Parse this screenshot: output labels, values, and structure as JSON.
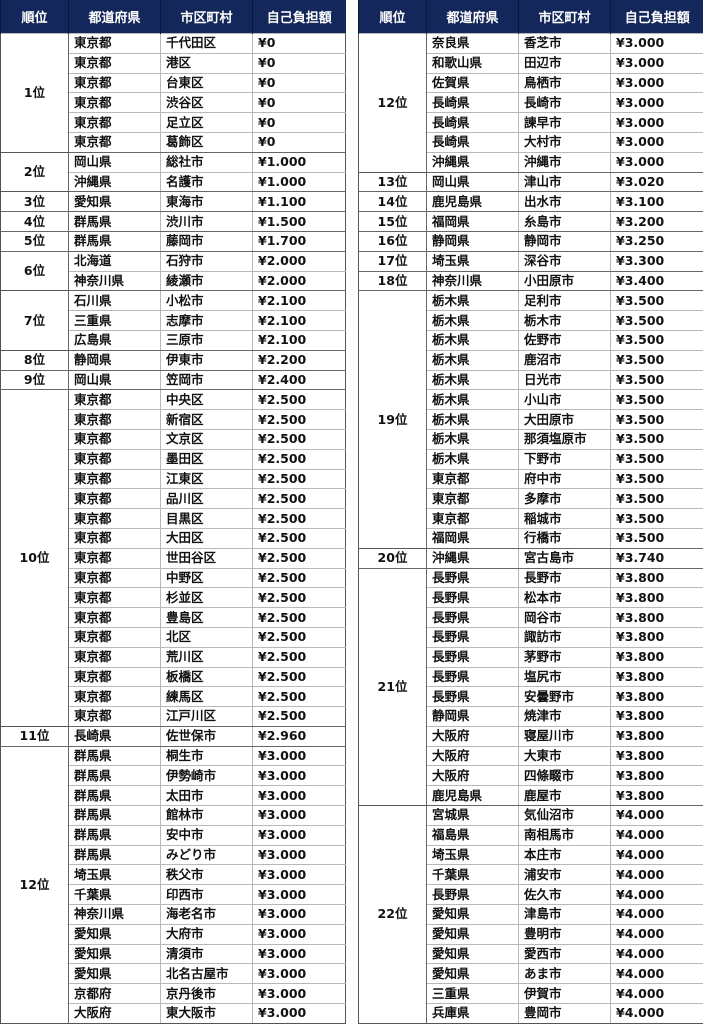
{
  "headers": [
    "順位",
    "都道府県",
    "市区町村",
    "自己負担額"
  ],
  "colors": {
    "header_bg": "#14275a",
    "header_text": "#ffffff"
  },
  "tables": [
    {
      "groups": [
        {
          "rank": "1位",
          "rows": [
            [
              "東京都",
              "千代田区",
              "¥0"
            ],
            [
              "東京都",
              "港区",
              "¥0"
            ],
            [
              "東京都",
              "台東区",
              "¥0"
            ],
            [
              "東京都",
              "渋谷区",
              "¥0"
            ],
            [
              "東京都",
              "足立区",
              "¥0"
            ],
            [
              "東京都",
              "葛飾区",
              "¥0"
            ]
          ]
        },
        {
          "rank": "2位",
          "rows": [
            [
              "岡山県",
              "総社市",
              "¥1.000"
            ],
            [
              "沖縄県",
              "名護市",
              "¥1.000"
            ]
          ]
        },
        {
          "rank": "3位",
          "rows": [
            [
              "愛知県",
              "東海市",
              "¥1.100"
            ]
          ]
        },
        {
          "rank": "4位",
          "rows": [
            [
              "群馬県",
              "渋川市",
              "¥1.500"
            ]
          ]
        },
        {
          "rank": "5位",
          "rows": [
            [
              "群馬県",
              "藤岡市",
              "¥1.700"
            ]
          ]
        },
        {
          "rank": "6位",
          "rows": [
            [
              "北海道",
              "石狩市",
              "¥2.000"
            ],
            [
              "神奈川県",
              "綾瀬市",
              "¥2.000"
            ]
          ]
        },
        {
          "rank": "7位",
          "rows": [
            [
              "石川県",
              "小松市",
              "¥2.100"
            ],
            [
              "三重県",
              "志摩市",
              "¥2.100"
            ],
            [
              "広島県",
              "三原市",
              "¥2.100"
            ]
          ]
        },
        {
          "rank": "8位",
          "rows": [
            [
              "静岡県",
              "伊東市",
              "¥2.200"
            ]
          ]
        },
        {
          "rank": "9位",
          "rows": [
            [
              "岡山県",
              "笠岡市",
              "¥2.400"
            ]
          ]
        },
        {
          "rank": "10位",
          "rows": [
            [
              "東京都",
              "中央区",
              "¥2.500"
            ],
            [
              "東京都",
              "新宿区",
              "¥2.500"
            ],
            [
              "東京都",
              "文京区",
              "¥2.500"
            ],
            [
              "東京都",
              "墨田区",
              "¥2.500"
            ],
            [
              "東京都",
              "江東区",
              "¥2.500"
            ],
            [
              "東京都",
              "品川区",
              "¥2.500"
            ],
            [
              "東京都",
              "目黒区",
              "¥2.500"
            ],
            [
              "東京都",
              "大田区",
              "¥2.500"
            ],
            [
              "東京都",
              "世田谷区",
              "¥2.500"
            ],
            [
              "東京都",
              "中野区",
              "¥2.500"
            ],
            [
              "東京都",
              "杉並区",
              "¥2.500"
            ],
            [
              "東京都",
              "豊島区",
              "¥2.500"
            ],
            [
              "東京都",
              "北区",
              "¥2.500"
            ],
            [
              "東京都",
              "荒川区",
              "¥2.500"
            ],
            [
              "東京都",
              "板橋区",
              "¥2.500"
            ],
            [
              "東京都",
              "練馬区",
              "¥2.500"
            ],
            [
              "東京都",
              "江戸川区",
              "¥2.500"
            ]
          ]
        },
        {
          "rank": "11位",
          "rows": [
            [
              "長崎県",
              "佐世保市",
              "¥2.960"
            ]
          ]
        },
        {
          "rank": "12位",
          "rows": [
            [
              "群馬県",
              "桐生市",
              "¥3.000"
            ],
            [
              "群馬県",
              "伊勢崎市",
              "¥3.000"
            ],
            [
              "群馬県",
              "太田市",
              "¥3.000"
            ],
            [
              "群馬県",
              "館林市",
              "¥3.000"
            ],
            [
              "群馬県",
              "安中市",
              "¥3.000"
            ],
            [
              "群馬県",
              "みどり市",
              "¥3.000"
            ],
            [
              "埼玉県",
              "秩父市",
              "¥3.000"
            ],
            [
              "千葉県",
              "印西市",
              "¥3.000"
            ],
            [
              "神奈川県",
              "海老名市",
              "¥3.000"
            ],
            [
              "愛知県",
              "大府市",
              "¥3.000"
            ],
            [
              "愛知県",
              "清須市",
              "¥3.000"
            ],
            [
              "愛知県",
              "北名古屋市",
              "¥3.000"
            ],
            [
              "京都府",
              "京丹後市",
              "¥3.000"
            ],
            [
              "大阪府",
              "東大阪市",
              "¥3.000"
            ]
          ]
        }
      ]
    },
    {
      "groups": [
        {
          "rank": "12位",
          "rows": [
            [
              "奈良県",
              "香芝市",
              "¥3.000"
            ],
            [
              "和歌山県",
              "田辺市",
              "¥3.000"
            ],
            [
              "佐賀県",
              "鳥栖市",
              "¥3.000"
            ],
            [
              "長崎県",
              "長崎市",
              "¥3.000"
            ],
            [
              "長崎県",
              "諫早市",
              "¥3.000"
            ],
            [
              "長崎県",
              "大村市",
              "¥3.000"
            ],
            [
              "沖縄県",
              "沖縄市",
              "¥3.000"
            ]
          ]
        },
        {
          "rank": "13位",
          "rows": [
            [
              "岡山県",
              "津山市",
              "¥3.020"
            ]
          ]
        },
        {
          "rank": "14位",
          "rows": [
            [
              "鹿児島県",
              "出水市",
              "¥3.100"
            ]
          ]
        },
        {
          "rank": "15位",
          "rows": [
            [
              "福岡県",
              "糸島市",
              "¥3.200"
            ]
          ]
        },
        {
          "rank": "16位",
          "rows": [
            [
              "静岡県",
              "静岡市",
              "¥3.250"
            ]
          ]
        },
        {
          "rank": "17位",
          "rows": [
            [
              "埼玉県",
              "深谷市",
              "¥3.300"
            ]
          ]
        },
        {
          "rank": "18位",
          "rows": [
            [
              "神奈川県",
              "小田原市",
              "¥3.400"
            ]
          ]
        },
        {
          "rank": "19位",
          "rows": [
            [
              "栃木県",
              "足利市",
              "¥3.500"
            ],
            [
              "栃木県",
              "栃木市",
              "¥3.500"
            ],
            [
              "栃木県",
              "佐野市",
              "¥3.500"
            ],
            [
              "栃木県",
              "鹿沼市",
              "¥3.500"
            ],
            [
              "栃木県",
              "日光市",
              "¥3.500"
            ],
            [
              "栃木県",
              "小山市",
              "¥3.500"
            ],
            [
              "栃木県",
              "大田原市",
              "¥3.500"
            ],
            [
              "栃木県",
              "那須塩原市",
              "¥3.500"
            ],
            [
              "栃木県",
              "下野市",
              "¥3.500"
            ],
            [
              "東京都",
              "府中市",
              "¥3.500"
            ],
            [
              "東京都",
              "多摩市",
              "¥3.500"
            ],
            [
              "東京都",
              "稲城市",
              "¥3.500"
            ],
            [
              "福岡県",
              "行橋市",
              "¥3.500"
            ]
          ]
        },
        {
          "rank": "20位",
          "rows": [
            [
              "沖縄県",
              "宮古島市",
              "¥3.740"
            ]
          ]
        },
        {
          "rank": "21位",
          "rows": [
            [
              "長野県",
              "長野市",
              "¥3.800"
            ],
            [
              "長野県",
              "松本市",
              "¥3.800"
            ],
            [
              "長野県",
              "岡谷市",
              "¥3.800"
            ],
            [
              "長野県",
              "諏訪市",
              "¥3.800"
            ],
            [
              "長野県",
              "茅野市",
              "¥3.800"
            ],
            [
              "長野県",
              "塩尻市",
              "¥3.800"
            ],
            [
              "長野県",
              "安曇野市",
              "¥3.800"
            ],
            [
              "静岡県",
              "焼津市",
              "¥3.800"
            ],
            [
              "大阪府",
              "寝屋川市",
              "¥3.800"
            ],
            [
              "大阪府",
              "大東市",
              "¥3.800"
            ],
            [
              "大阪府",
              "四條畷市",
              "¥3.800"
            ],
            [
              "鹿児島県",
              "鹿屋市",
              "¥3.800"
            ]
          ]
        },
        {
          "rank": "22位",
          "rows": [
            [
              "宮城県",
              "気仙沼市",
              "¥4.000"
            ],
            [
              "福島県",
              "南相馬市",
              "¥4.000"
            ],
            [
              "埼玉県",
              "本庄市",
              "¥4.000"
            ],
            [
              "千葉県",
              "浦安市",
              "¥4.000"
            ],
            [
              "長野県",
              "佐久市",
              "¥4.000"
            ],
            [
              "愛知県",
              "津島市",
              "¥4.000"
            ],
            [
              "愛知県",
              "豊明市",
              "¥4.000"
            ],
            [
              "愛知県",
              "愛西市",
              "¥4.000"
            ],
            [
              "愛知県",
              "あま市",
              "¥4.000"
            ],
            [
              "三重県",
              "伊賀市",
              "¥4.000"
            ],
            [
              "兵庫県",
              "豊岡市",
              "¥4.000"
            ]
          ]
        }
      ]
    }
  ]
}
